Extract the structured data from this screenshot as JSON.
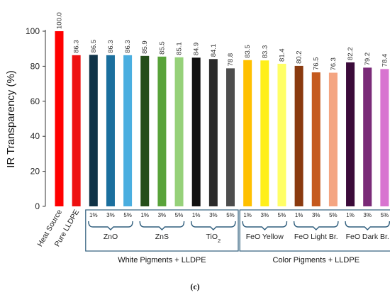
{
  "panel_label": "(c)",
  "chart_data": {
    "type": "bar",
    "ylabel": "IR Transparency (%)",
    "ylim": [
      0,
      100
    ],
    "yticks": [
      "0",
      "20",
      "40",
      "60",
      "80",
      "100"
    ],
    "grid": false,
    "legend": "none",
    "bars": [
      {
        "label": "Heat Source",
        "value": 100.0,
        "value_label": "100.0",
        "color": "#ff0000"
      },
      {
        "label": "Pure LLDPE",
        "value": 86.3,
        "value_label": "86.3",
        "color": "#ee1111"
      },
      {
        "label": "1%",
        "value": 86.5,
        "value_label": "86.5",
        "color": "#0f3347"
      },
      {
        "label": "3%",
        "value": 86.3,
        "value_label": "86.3",
        "color": "#1b6f9e"
      },
      {
        "label": "5%",
        "value": 86.3,
        "value_label": "86.3",
        "color": "#4aaee0"
      },
      {
        "label": "1%",
        "value": 85.9,
        "value_label": "85.9",
        "color": "#244e1a"
      },
      {
        "label": "3%",
        "value": 85.5,
        "value_label": "85.5",
        "color": "#59a33a"
      },
      {
        "label": "5%",
        "value": 85.1,
        "value_label": "85.1",
        "color": "#96d17a"
      },
      {
        "label": "1%",
        "value": 84.9,
        "value_label": "84.9",
        "color": "#111111"
      },
      {
        "label": "3%",
        "value": 84.1,
        "value_label": "84.1",
        "color": "#2b2b2b"
      },
      {
        "label": "5%",
        "value": 78.8,
        "value_label": "78.8",
        "color": "#4d4d4d"
      },
      {
        "label": "1%",
        "value": 83.5,
        "value_label": "83.5",
        "color": "#ffc000"
      },
      {
        "label": "3%",
        "value": 83.3,
        "value_label": "83.3",
        "color": "#ffef1a"
      },
      {
        "label": "5%",
        "value": 81.4,
        "value_label": "81.4",
        "color": "#ffff66"
      },
      {
        "label": "1%",
        "value": 80.2,
        "value_label": "80.2",
        "color": "#8a3a0f"
      },
      {
        "label": "3%",
        "value": 76.5,
        "value_label": "76.5",
        "color": "#c55a1e"
      },
      {
        "label": "5%",
        "value": 76.3,
        "value_label": "76.3",
        "color": "#f4a582"
      },
      {
        "label": "1%",
        "value": 82.2,
        "value_label": "82.2",
        "color": "#3b0b3a"
      },
      {
        "label": "3%",
        "value": 79.2,
        "value_label": "79.2",
        "color": "#7a2a78"
      },
      {
        "label": "5%",
        "value": 78.4,
        "value_label": "78.4",
        "color": "#d874d0"
      }
    ],
    "groups": [
      {
        "name": "ZnO",
        "sub": "",
        "bars": [
          2,
          4
        ]
      },
      {
        "name": "ZnS",
        "sub": "",
        "bars": [
          5,
          7
        ]
      },
      {
        "name": "TiO",
        "sub": "2",
        "bars": [
          8,
          10
        ]
      },
      {
        "name": "FeO Yellow",
        "sub": "",
        "bars": [
          11,
          13
        ]
      },
      {
        "name": "FeO Light Br.",
        "sub": "",
        "bars": [
          14,
          16
        ]
      },
      {
        "name": "FeO Dark Br.",
        "sub": "",
        "bars": [
          17,
          19
        ]
      }
    ],
    "sections": [
      {
        "name": "White Pigments + LLDPE",
        "bars": [
          2,
          10
        ]
      },
      {
        "name": "Color Pigments + LLDPE",
        "bars": [
          11,
          19
        ]
      }
    ]
  }
}
